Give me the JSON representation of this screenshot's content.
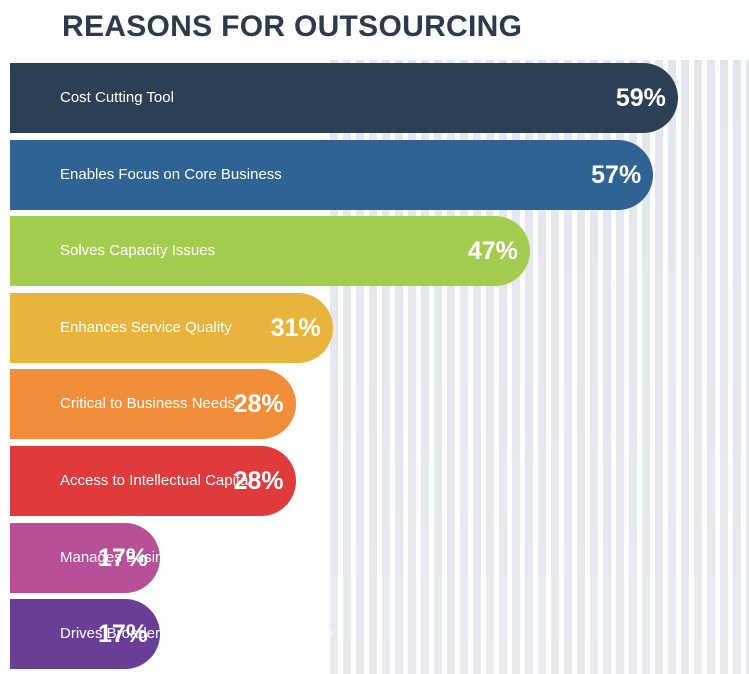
{
  "title": "REASONS FOR OUTSOURCING",
  "chart_data": {
    "type": "bar",
    "orientation": "horizontal",
    "title": "REASONS FOR OUTSOURCING",
    "categories": [
      "Cost Cutting Tool",
      "Enables Focus on Core Business",
      "Solves Capacity Issues",
      "Enhances Service Quality",
      "Critical to Business Needs",
      "Access to Intellectual Capital",
      "Manages Business Environment",
      "Drives Broader Transformational Change"
    ],
    "values": [
      59,
      57,
      47,
      31,
      28,
      28,
      17,
      17
    ],
    "value_labels": [
      "59%",
      "57%",
      "47%",
      "31%",
      "28%",
      "28%",
      "17%",
      "17%"
    ],
    "colors": [
      "#2d3f54",
      "#2f6393",
      "#a4cd4f",
      "#e8b43c",
      "#f28e3a",
      "#e03a3c",
      "#b75097",
      "#6a3e97"
    ],
    "grid": false
  }
}
